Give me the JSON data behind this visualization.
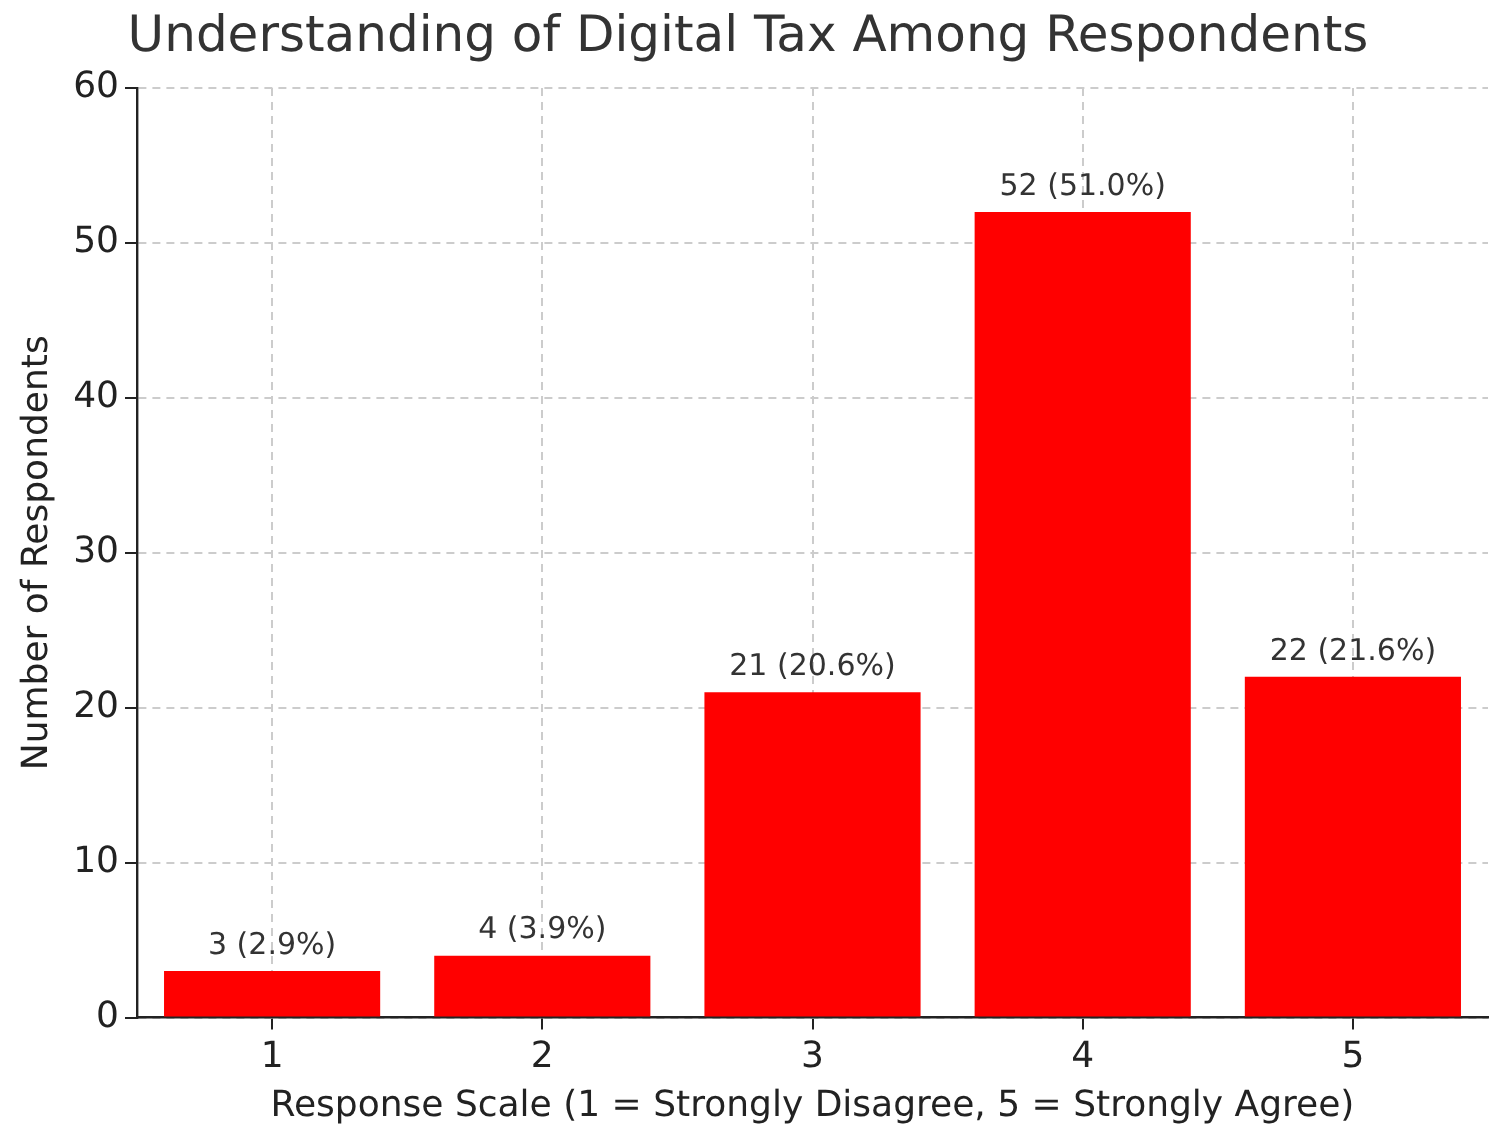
{
  "chart_data": {
    "type": "bar",
    "title": "Understanding of Digital Tax Among Respondents",
    "xlabel": "Response Scale (1 = Strongly Disagree, 5 = Strongly Agree)",
    "ylabel": "Number of Respondents",
    "categories": [
      "1",
      "2",
      "3",
      "4",
      "5"
    ],
    "values": [
      3,
      4,
      21,
      52,
      22
    ],
    "color": "#ff0000",
    "value_labels": [
      "3 (2.9%)",
      "4 (3.9%)",
      "21 (20.6%)",
      "52 (51.0%)",
      "22 (21.6%)"
    ],
    "ylim": [
      0,
      60
    ],
    "yticks": [
      0,
      10,
      20,
      30,
      40,
      50,
      60
    ],
    "grid": true,
    "legend": false
  }
}
